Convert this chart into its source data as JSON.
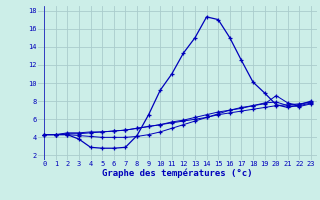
{
  "title": "Graphe des températures (°c)",
  "background_color": "#cceee8",
  "grid_color": "#aacccc",
  "line_color": "#0000bb",
  "xlim": [
    -0.5,
    23.5
  ],
  "ylim": [
    1.5,
    18.5
  ],
  "xticks": [
    0,
    1,
    2,
    3,
    4,
    5,
    6,
    7,
    8,
    9,
    10,
    11,
    12,
    13,
    14,
    15,
    16,
    17,
    18,
    19,
    20,
    21,
    22,
    23
  ],
  "yticks": [
    2,
    4,
    6,
    8,
    10,
    12,
    14,
    16,
    18
  ],
  "series1_x": [
    0,
    1,
    2,
    3,
    4,
    5,
    6,
    7,
    8,
    9,
    10,
    11,
    12,
    13,
    14,
    15,
    16,
    17,
    18,
    19,
    20,
    21,
    22,
    23
  ],
  "series1_y": [
    4.3,
    4.3,
    4.3,
    3.8,
    2.9,
    2.8,
    2.8,
    2.9,
    4.2,
    6.5,
    9.2,
    11.0,
    13.3,
    15.0,
    17.3,
    17.0,
    15.0,
    12.5,
    10.1,
    8.9,
    7.6,
    7.3,
    7.6,
    8.0
  ],
  "series2_x": [
    0,
    1,
    2,
    3,
    4,
    5,
    6,
    7,
    8,
    9,
    10,
    11,
    12,
    13,
    14,
    15,
    16,
    17,
    18,
    19,
    20,
    21,
    22,
    23
  ],
  "series2_y": [
    4.3,
    4.3,
    4.5,
    4.5,
    4.6,
    4.6,
    4.7,
    4.8,
    5.0,
    5.2,
    5.4,
    5.6,
    5.8,
    6.0,
    6.2,
    6.5,
    6.7,
    6.9,
    7.1,
    7.3,
    7.5,
    7.6,
    7.7,
    7.9
  ],
  "series3_x": [
    0,
    1,
    2,
    3,
    4,
    5,
    6,
    7,
    8,
    9,
    10,
    11,
    12,
    13,
    14,
    15,
    16,
    17,
    18,
    19,
    20,
    21,
    22,
    23
  ],
  "series3_y": [
    4.3,
    4.3,
    4.4,
    4.4,
    4.5,
    4.6,
    4.7,
    4.8,
    5.0,
    5.2,
    5.4,
    5.7,
    5.9,
    6.2,
    6.5,
    6.8,
    7.0,
    7.2,
    7.5,
    7.7,
    8.6,
    7.8,
    7.5,
    7.8
  ],
  "series4_x": [
    0,
    1,
    2,
    3,
    4,
    5,
    6,
    7,
    8,
    9,
    10,
    11,
    12,
    13,
    14,
    15,
    16,
    17,
    18,
    19,
    20,
    21,
    22,
    23
  ],
  "series4_y": [
    4.3,
    4.3,
    4.3,
    4.2,
    4.1,
    4.0,
    4.0,
    4.0,
    4.1,
    4.3,
    4.6,
    5.0,
    5.4,
    5.8,
    6.2,
    6.6,
    7.0,
    7.3,
    7.5,
    7.8,
    7.9,
    7.5,
    7.4,
    7.7
  ]
}
